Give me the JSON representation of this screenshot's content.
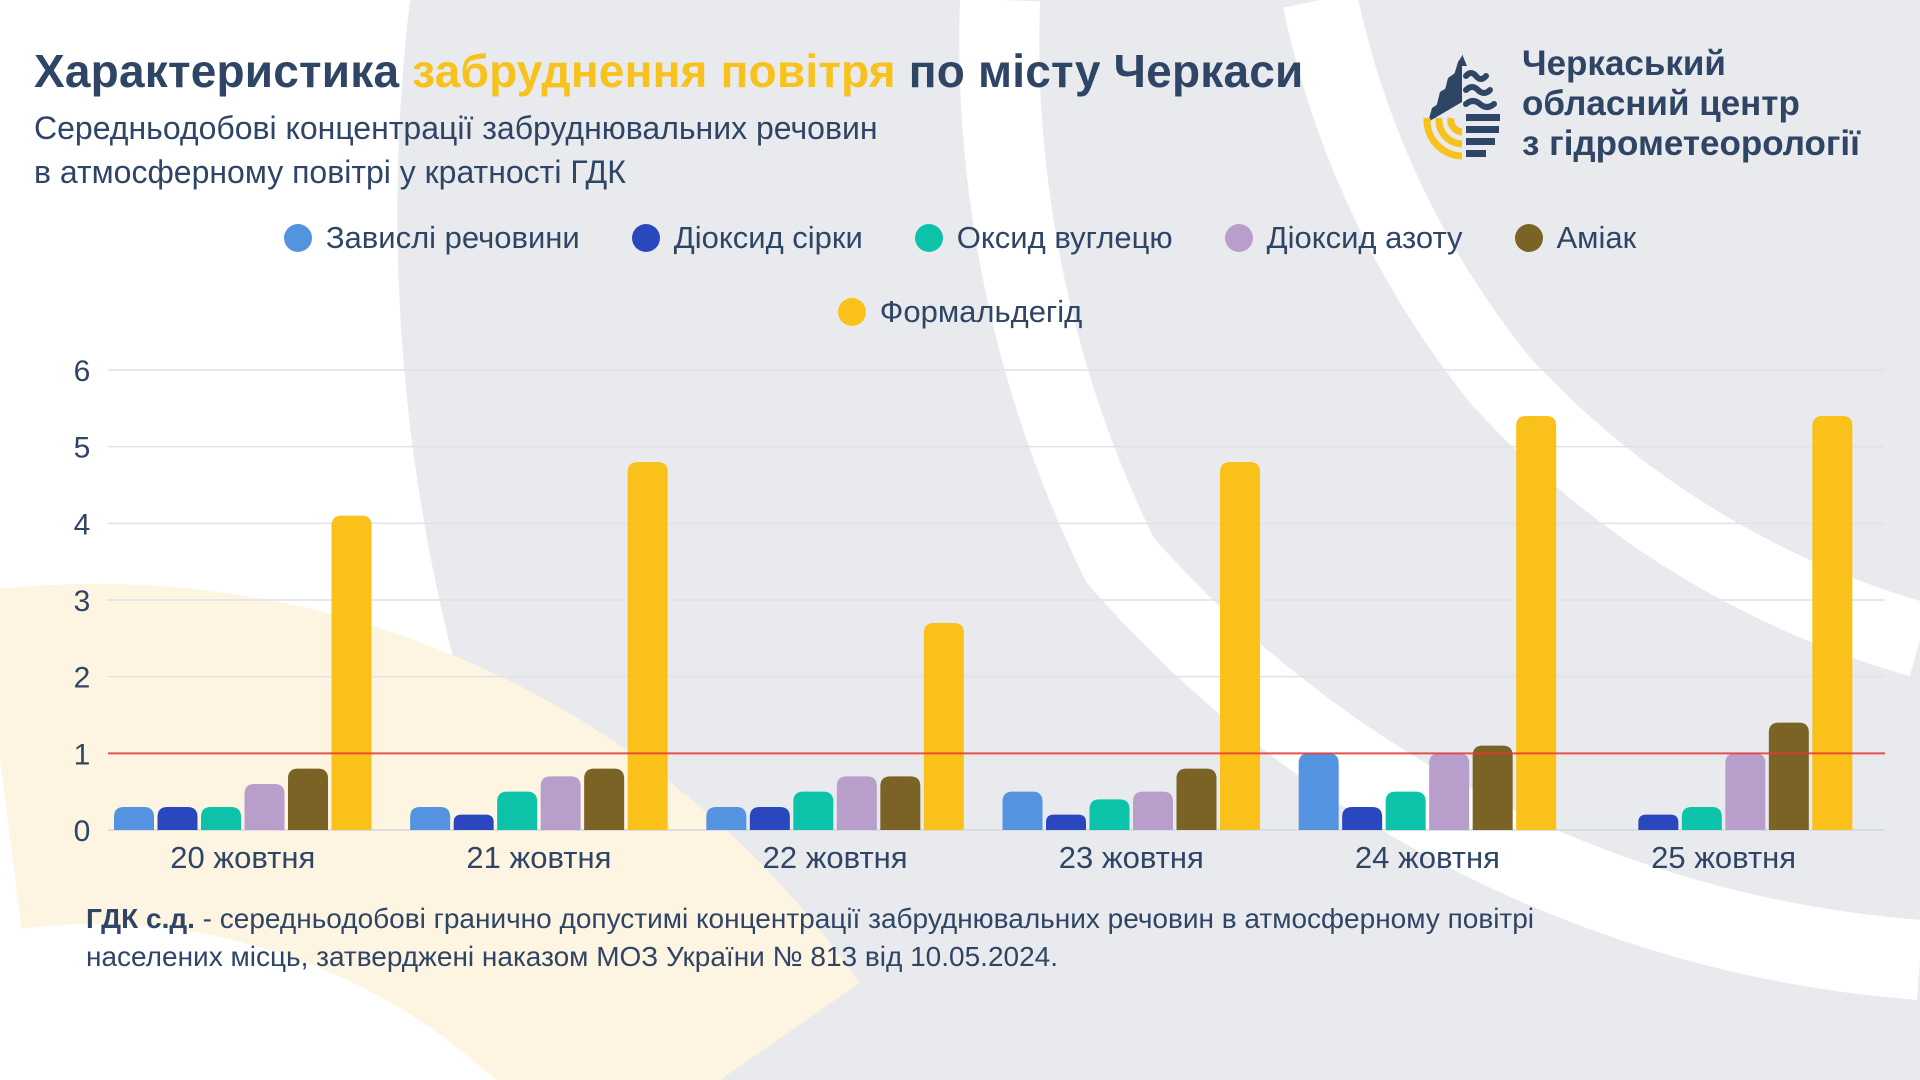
{
  "header": {
    "title_part1": "Характеристика ",
    "title_accent": "забруднення повітря",
    "title_part2": " по місту Черкаси",
    "subtitle_line1": "Середньодобові концентрації забруднювальних речовин",
    "subtitle_line2": "в атмосферному повітрі у кратності ГДК"
  },
  "organization": {
    "line1": "Черкаський",
    "line2": "обласний центр",
    "line3": "з гідрометеорології",
    "logo_icon": "water-drop-logo-icon"
  },
  "colors": {
    "text": "#2f4566",
    "accent": "#f8c21c",
    "threshold": "#e53935",
    "grid": "#dfe1e6"
  },
  "footnote": {
    "bold": "ГДК с.д.",
    "line1_rest": " - середньодобові гранично допустимі концентрації забруднювальних речовин в атмосферному повітрі",
    "line2": "населених місць, затверджені наказом МОЗ України № 813 від 10.05.2024."
  },
  "chart_data": {
    "type": "bar",
    "title": "Середньодобові концентрації забруднювальних речовин в атмосферному повітрі у кратності ГДК",
    "xlabel": "",
    "ylabel": "",
    "ylim": [
      0,
      6
    ],
    "yticks": [
      "0",
      "1",
      "2",
      "3",
      "4",
      "5",
      "6"
    ],
    "grid": true,
    "legend_position": "top-center",
    "threshold": {
      "value": 1,
      "label": "ГДК"
    },
    "categories": [
      "20 жовтня",
      "21 жовтня",
      "22 жовтня",
      "23 жовтня",
      "24 жовтня",
      "25 жовтня"
    ],
    "series": [
      {
        "name": "Завислі речовини",
        "color": "#5393e0",
        "values": [
          0.3,
          0.3,
          0.3,
          0.5,
          1.0,
          null
        ]
      },
      {
        "name": "Діоксид сірки",
        "color": "#2a47be",
        "values": [
          0.3,
          0.2,
          0.3,
          0.2,
          0.3,
          0.2
        ]
      },
      {
        "name": "Оксид вуглецю",
        "color": "#0cc3a9",
        "values": [
          0.3,
          0.5,
          0.5,
          0.4,
          0.5,
          0.3
        ]
      },
      {
        "name": "Діоксид азоту",
        "color": "#b89fcb",
        "values": [
          0.6,
          0.7,
          0.7,
          0.5,
          1.0,
          1.0
        ]
      },
      {
        "name": "Аміак",
        "color": "#7a6325",
        "values": [
          0.8,
          0.8,
          0.7,
          0.8,
          1.1,
          1.4
        ]
      },
      {
        "name": "Формальдегід",
        "color": "#fbc11b",
        "values": [
          4.1,
          4.8,
          2.7,
          4.8,
          5.4,
          5.4
        ]
      }
    ]
  }
}
